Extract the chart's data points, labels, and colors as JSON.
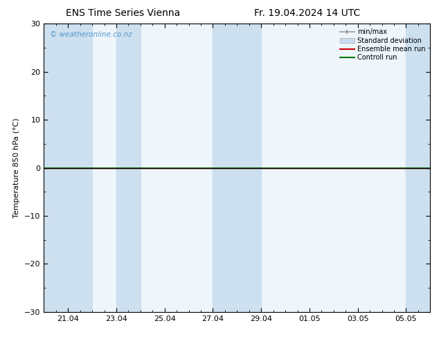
{
  "title_left": "ENS Time Series Vienna",
  "title_right": "Fr. 19.04.2024 14 UTC",
  "ylabel": "Temperature 850 hPa (°C)",
  "watermark": "© weatheronline.co.nz",
  "ylim": [
    -30,
    30
  ],
  "yticks": [
    -30,
    -20,
    -10,
    0,
    10,
    20,
    30
  ],
  "xtick_labels": [
    "21.04",
    "23.04",
    "25.04",
    "27.04",
    "29.04",
    "01.05",
    "03.05",
    "05.05"
  ],
  "xlim_days": [
    0,
    16
  ],
  "shaded_bands_dark": [
    {
      "x_start": 0.0,
      "x_end": 2.0
    },
    {
      "x_start": 3.0,
      "x_end": 4.0
    },
    {
      "x_start": 7.0,
      "x_end": 9.0
    },
    {
      "x_start": 15.0,
      "x_end": 16.0
    }
  ],
  "legend_labels": [
    "min/max",
    "Standard deviation",
    "Ensemble mean run",
    "Controll run"
  ],
  "legend_colors": [
    "#aaaaaa",
    "#c8ddf0",
    "#ff0000",
    "#008000"
  ],
  "bg_color": "#ffffff",
  "plot_bg_color": "#eef5fb",
  "dark_band_color": "#cce0f0",
  "title_fontsize": 10,
  "axis_fontsize": 8,
  "tick_fontsize": 8,
  "watermark_color": "#5599cc",
  "border_color": "#000000",
  "zero_line_color": "#000000",
  "control_run_color": "#007700",
  "ensemble_mean_color": "#cc0000"
}
